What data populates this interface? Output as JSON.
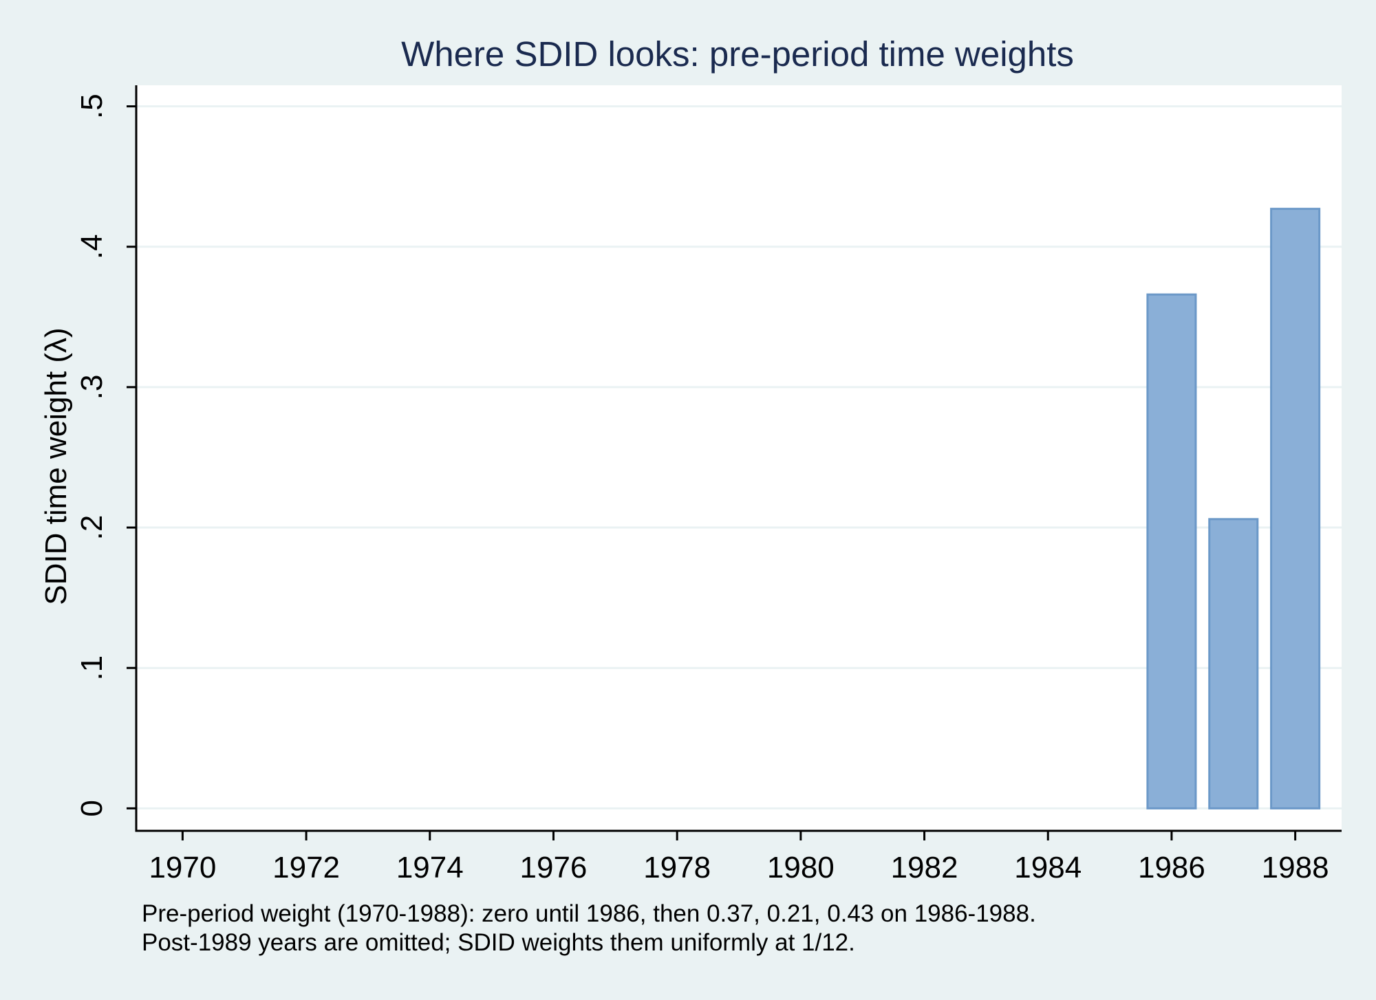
{
  "chart_data": {
    "type": "bar",
    "title": "Where SDID looks: pre-period time weights",
    "xlabel": "",
    "ylabel": "SDID time weight (λ)",
    "x": [
      1970,
      1971,
      1972,
      1973,
      1974,
      1975,
      1976,
      1977,
      1978,
      1979,
      1980,
      1981,
      1982,
      1983,
      1984,
      1985,
      1986,
      1987,
      1988
    ],
    "values": [
      0,
      0,
      0,
      0,
      0,
      0,
      0,
      0,
      0,
      0,
      0,
      0,
      0,
      0,
      0,
      0,
      0.366,
      0.206,
      0.427
    ],
    "xticks": [
      1970,
      1972,
      1974,
      1976,
      1978,
      1980,
      1982,
      1984,
      1986,
      1988
    ],
    "xtick_labels": [
      "1970",
      "1972",
      "1974",
      "1976",
      "1978",
      "1980",
      "1982",
      "1984",
      "1986",
      "1988"
    ],
    "yticks": [
      0,
      0.1,
      0.2,
      0.3,
      0.4,
      0.5
    ],
    "ytick_labels": [
      "0",
      ".1",
      ".2",
      ".3",
      ".4",
      ".5"
    ],
    "xlim": [
      1969.25,
      1988.75
    ],
    "ylim": [
      -0.016,
      0.515
    ],
    "grid": true,
    "legend": "none",
    "notes": [
      "Pre-period weight (1970-1988): zero until 1986, then 0.37, 0.21, 0.43 on 1986-1988.",
      "Post-1989 years are omitted; SDID weights them uniformly at 1/12."
    ],
    "colors": {
      "background": "#eaf2f3",
      "plot_background": "#ffffff",
      "bar_fill": "#8aafd7",
      "bar_stroke": "#6b98c8",
      "grid": "#eaf2f3",
      "title": "#1a2a4f",
      "axis": "#000000"
    }
  }
}
